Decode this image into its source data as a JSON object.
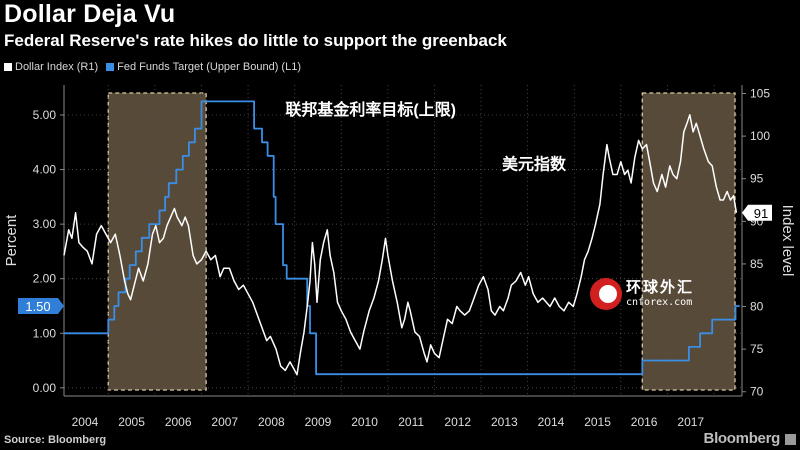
{
  "header": {
    "title": "Dollar Deja Vu",
    "subtitle": "Federal Reserve's rate hikes do little to support the greenback"
  },
  "legend": {
    "items": [
      {
        "label": "Dollar Index (R1)",
        "color": "#ffffff"
      },
      {
        "label": "Fed Funds Target (Upper Bound) (L1)",
        "color": "#3a8ee6"
      }
    ]
  },
  "footer": {
    "source": "Source: Bloomberg",
    "brand": "Bloomberg"
  },
  "watermark": {
    "name": "环球外汇",
    "site": "cnforex.com"
  },
  "chart_data": {
    "type": "line",
    "ylabel_left": "Percent",
    "ylabel_right": "Index level",
    "x_ticks": [
      "2004",
      "2005",
      "2006",
      "2007",
      "2008",
      "2009",
      "2010",
      "2011",
      "2012",
      "2013",
      "2014",
      "2015",
      "2016",
      "2017"
    ],
    "x_range": [
      2003.55,
      2018.1
    ],
    "ylim_left": [
      -0.15,
      5.55
    ],
    "left_ticks": [
      "0.00",
      "1.00",
      "2.00",
      "3.00",
      "4.00",
      "5.00"
    ],
    "ylim_right": [
      69.5,
      106
    ],
    "right_ticks": [
      "70",
      "75",
      "80",
      "85",
      "90",
      "95",
      "100",
      "105"
    ],
    "shaded_periods": [
      {
        "start": 2004.5,
        "end": 2006.6
      },
      {
        "start": 2015.96,
        "end": 2017.95
      }
    ],
    "annotations": [
      {
        "text": "联邦基金利率目标(上限)",
        "x": 2008.3,
        "y_left": 5.0
      },
      {
        "text": "美元指数",
        "x": 2012.95,
        "y_left": 4.0
      }
    ],
    "last_value_labels": {
      "left": "1.50",
      "right": "91"
    },
    "series": [
      {
        "name": "Fed Funds Target (Upper Bound) (L1)",
        "axis": "left",
        "color": "#3a8ee6",
        "points": [
          [
            2003.55,
            1.0
          ],
          [
            2004.5,
            1.0
          ],
          [
            2004.5,
            1.25
          ],
          [
            2004.63,
            1.25
          ],
          [
            2004.63,
            1.5
          ],
          [
            2004.72,
            1.5
          ],
          [
            2004.72,
            1.75
          ],
          [
            2004.87,
            1.75
          ],
          [
            2004.87,
            2.0
          ],
          [
            2004.96,
            2.0
          ],
          [
            2004.96,
            2.25
          ],
          [
            2005.09,
            2.25
          ],
          [
            2005.09,
            2.5
          ],
          [
            2005.22,
            2.5
          ],
          [
            2005.22,
            2.75
          ],
          [
            2005.38,
            2.75
          ],
          [
            2005.38,
            3.0
          ],
          [
            2005.6,
            3.0
          ],
          [
            2005.6,
            3.25
          ],
          [
            2005.72,
            3.25
          ],
          [
            2005.72,
            3.5
          ],
          [
            2005.8,
            3.5
          ],
          [
            2005.8,
            3.75
          ],
          [
            2005.96,
            3.75
          ],
          [
            2005.96,
            4.0
          ],
          [
            2006.1,
            4.0
          ],
          [
            2006.1,
            4.25
          ],
          [
            2006.23,
            4.25
          ],
          [
            2006.23,
            4.5
          ],
          [
            2006.36,
            4.5
          ],
          [
            2006.36,
            4.75
          ],
          [
            2006.5,
            4.75
          ],
          [
            2006.5,
            5.25
          ],
          [
            2007.63,
            5.25
          ],
          [
            2007.63,
            4.75
          ],
          [
            2007.8,
            4.75
          ],
          [
            2007.8,
            4.5
          ],
          [
            2007.92,
            4.5
          ],
          [
            2007.92,
            4.25
          ],
          [
            2008.05,
            4.25
          ],
          [
            2008.05,
            3.5
          ],
          [
            2008.09,
            3.5
          ],
          [
            2008.09,
            3.0
          ],
          [
            2008.25,
            3.0
          ],
          [
            2008.25,
            2.25
          ],
          [
            2008.33,
            2.25
          ],
          [
            2008.33,
            2.0
          ],
          [
            2008.77,
            2.0
          ],
          [
            2008.77,
            1.5
          ],
          [
            2008.83,
            1.5
          ],
          [
            2008.83,
            1.0
          ],
          [
            2008.96,
            1.0
          ],
          [
            2008.96,
            0.25
          ],
          [
            2015.96,
            0.25
          ],
          [
            2015.96,
            0.5
          ],
          [
            2016.96,
            0.5
          ],
          [
            2016.96,
            0.75
          ],
          [
            2017.2,
            0.75
          ],
          [
            2017.2,
            1.0
          ],
          [
            2017.46,
            1.0
          ],
          [
            2017.46,
            1.25
          ],
          [
            2017.96,
            1.25
          ],
          [
            2017.96,
            1.5
          ],
          [
            2018.05,
            1.5
          ]
        ]
      },
      {
        "name": "Dollar Index (R1)",
        "axis": "right",
        "color": "#ffffff",
        "points": [
          [
            2003.55,
            86.0
          ],
          [
            2003.65,
            89.0
          ],
          [
            2003.72,
            88.0
          ],
          [
            2003.8,
            91.0
          ],
          [
            2003.87,
            87.5
          ],
          [
            2003.95,
            87.0
          ],
          [
            2004.05,
            86.5
          ],
          [
            2004.15,
            85.0
          ],
          [
            2004.25,
            88.5
          ],
          [
            2004.35,
            89.5
          ],
          [
            2004.45,
            88.5
          ],
          [
            2004.55,
            87.5
          ],
          [
            2004.65,
            88.5
          ],
          [
            2004.75,
            86.0
          ],
          [
            2004.85,
            83.0
          ],
          [
            2004.92,
            81.5
          ],
          [
            2004.98,
            80.8
          ],
          [
            2005.08,
            83.0
          ],
          [
            2005.15,
            84.5
          ],
          [
            2005.25,
            83.0
          ],
          [
            2005.35,
            85.0
          ],
          [
            2005.45,
            88.5
          ],
          [
            2005.52,
            89.5
          ],
          [
            2005.6,
            87.5
          ],
          [
            2005.68,
            88.0
          ],
          [
            2005.76,
            89.5
          ],
          [
            2005.84,
            90.5
          ],
          [
            2005.92,
            91.5
          ],
          [
            2005.98,
            90.5
          ],
          [
            2006.08,
            89.5
          ],
          [
            2006.15,
            90.5
          ],
          [
            2006.22,
            89.5
          ],
          [
            2006.32,
            86.0
          ],
          [
            2006.4,
            85.0
          ],
          [
            2006.5,
            85.5
          ],
          [
            2006.6,
            86.5
          ],
          [
            2006.7,
            85.5
          ],
          [
            2006.8,
            86.0
          ],
          [
            2006.9,
            83.5
          ],
          [
            2006.98,
            84.5
          ],
          [
            2007.1,
            84.5
          ],
          [
            2007.2,
            83.0
          ],
          [
            2007.3,
            82.0
          ],
          [
            2007.4,
            82.5
          ],
          [
            2007.5,
            81.5
          ],
          [
            2007.6,
            80.5
          ],
          [
            2007.7,
            79.0
          ],
          [
            2007.8,
            77.5
          ],
          [
            2007.9,
            76.0
          ],
          [
            2007.98,
            76.5
          ],
          [
            2008.1,
            75.0
          ],
          [
            2008.2,
            73.0
          ],
          [
            2008.3,
            72.5
          ],
          [
            2008.4,
            73.5
          ],
          [
            2008.5,
            72.5
          ],
          [
            2008.55,
            72.0
          ],
          [
            2008.62,
            74.5
          ],
          [
            2008.7,
            77.0
          ],
          [
            2008.78,
            80.5
          ],
          [
            2008.83,
            83.0
          ],
          [
            2008.88,
            87.5
          ],
          [
            2008.93,
            85.0
          ],
          [
            2008.98,
            80.5
          ],
          [
            2009.05,
            85.5
          ],
          [
            2009.12,
            87.5
          ],
          [
            2009.2,
            89.0
          ],
          [
            2009.26,
            86.0
          ],
          [
            2009.34,
            84.0
          ],
          [
            2009.42,
            80.5
          ],
          [
            2009.5,
            79.5
          ],
          [
            2009.6,
            78.5
          ],
          [
            2009.7,
            77.0
          ],
          [
            2009.8,
            76.0
          ],
          [
            2009.9,
            75.0
          ],
          [
            2009.98,
            77.0
          ],
          [
            2010.1,
            79.5
          ],
          [
            2010.2,
            81.0
          ],
          [
            2010.3,
            83.0
          ],
          [
            2010.38,
            85.5
          ],
          [
            2010.45,
            88.0
          ],
          [
            2010.5,
            86.0
          ],
          [
            2010.6,
            83.0
          ],
          [
            2010.7,
            80.5
          ],
          [
            2010.8,
            77.5
          ],
          [
            2010.86,
            78.5
          ],
          [
            2010.93,
            80.5
          ],
          [
            2010.98,
            79.5
          ],
          [
            2011.08,
            77.0
          ],
          [
            2011.18,
            76.5
          ],
          [
            2011.28,
            74.5
          ],
          [
            2011.34,
            73.5
          ],
          [
            2011.42,
            75.5
          ],
          [
            2011.5,
            74.5
          ],
          [
            2011.6,
            74.0
          ],
          [
            2011.68,
            76.0
          ],
          [
            2011.78,
            78.5
          ],
          [
            2011.88,
            78.0
          ],
          [
            2011.98,
            80.0
          ],
          [
            2012.05,
            79.5
          ],
          [
            2012.15,
            79.0
          ],
          [
            2012.25,
            79.5
          ],
          [
            2012.35,
            81.0
          ],
          [
            2012.45,
            82.5
          ],
          [
            2012.55,
            83.5
          ],
          [
            2012.65,
            82.0
          ],
          [
            2012.72,
            79.5
          ],
          [
            2012.8,
            79.0
          ],
          [
            2012.9,
            80.0
          ],
          [
            2012.98,
            79.5
          ],
          [
            2013.08,
            81.0
          ],
          [
            2013.15,
            82.5
          ],
          [
            2013.25,
            83.0
          ],
          [
            2013.35,
            84.0
          ],
          [
            2013.45,
            82.5
          ],
          [
            2013.52,
            83.5
          ],
          [
            2013.62,
            81.5
          ],
          [
            2013.72,
            80.5
          ],
          [
            2013.82,
            81.0
          ],
          [
            2013.9,
            80.5
          ],
          [
            2013.98,
            80.0
          ],
          [
            2014.08,
            81.0
          ],
          [
            2014.18,
            80.0
          ],
          [
            2014.28,
            79.5
          ],
          [
            2014.38,
            80.5
          ],
          [
            2014.48,
            80.0
          ],
          [
            2014.56,
            81.5
          ],
          [
            2014.65,
            83.5
          ],
          [
            2014.72,
            85.5
          ],
          [
            2014.8,
            86.5
          ],
          [
            2014.88,
            88.0
          ],
          [
            2014.95,
            89.5
          ],
          [
            2015.05,
            92.0
          ],
          [
            2015.12,
            95.5
          ],
          [
            2015.2,
            99.0
          ],
          [
            2015.25,
            97.5
          ],
          [
            2015.33,
            95.5
          ],
          [
            2015.42,
            95.5
          ],
          [
            2015.5,
            97.0
          ],
          [
            2015.58,
            95.5
          ],
          [
            2015.65,
            96.0
          ],
          [
            2015.72,
            94.5
          ],
          [
            2015.8,
            97.5
          ],
          [
            2015.88,
            99.5
          ],
          [
            2015.96,
            98.5
          ],
          [
            2016.05,
            99.0
          ],
          [
            2016.12,
            97.0
          ],
          [
            2016.2,
            94.5
          ],
          [
            2016.28,
            93.5
          ],
          [
            2016.38,
            95.5
          ],
          [
            2016.46,
            94.0
          ],
          [
            2016.55,
            96.5
          ],
          [
            2016.62,
            95.5
          ],
          [
            2016.7,
            95.0
          ],
          [
            2016.78,
            97.0
          ],
          [
            2016.85,
            100.5
          ],
          [
            2016.92,
            101.5
          ],
          [
            2016.98,
            102.5
          ],
          [
            2017.05,
            100.5
          ],
          [
            2017.12,
            101.5
          ],
          [
            2017.2,
            100.0
          ],
          [
            2017.28,
            98.5
          ],
          [
            2017.38,
            97.0
          ],
          [
            2017.46,
            96.5
          ],
          [
            2017.55,
            94.0
          ],
          [
            2017.63,
            92.5
          ],
          [
            2017.7,
            92.5
          ],
          [
            2017.78,
            93.5
          ],
          [
            2017.85,
            92.5
          ],
          [
            2017.92,
            93.0
          ],
          [
            2017.98,
            91.0
          ]
        ]
      }
    ]
  }
}
